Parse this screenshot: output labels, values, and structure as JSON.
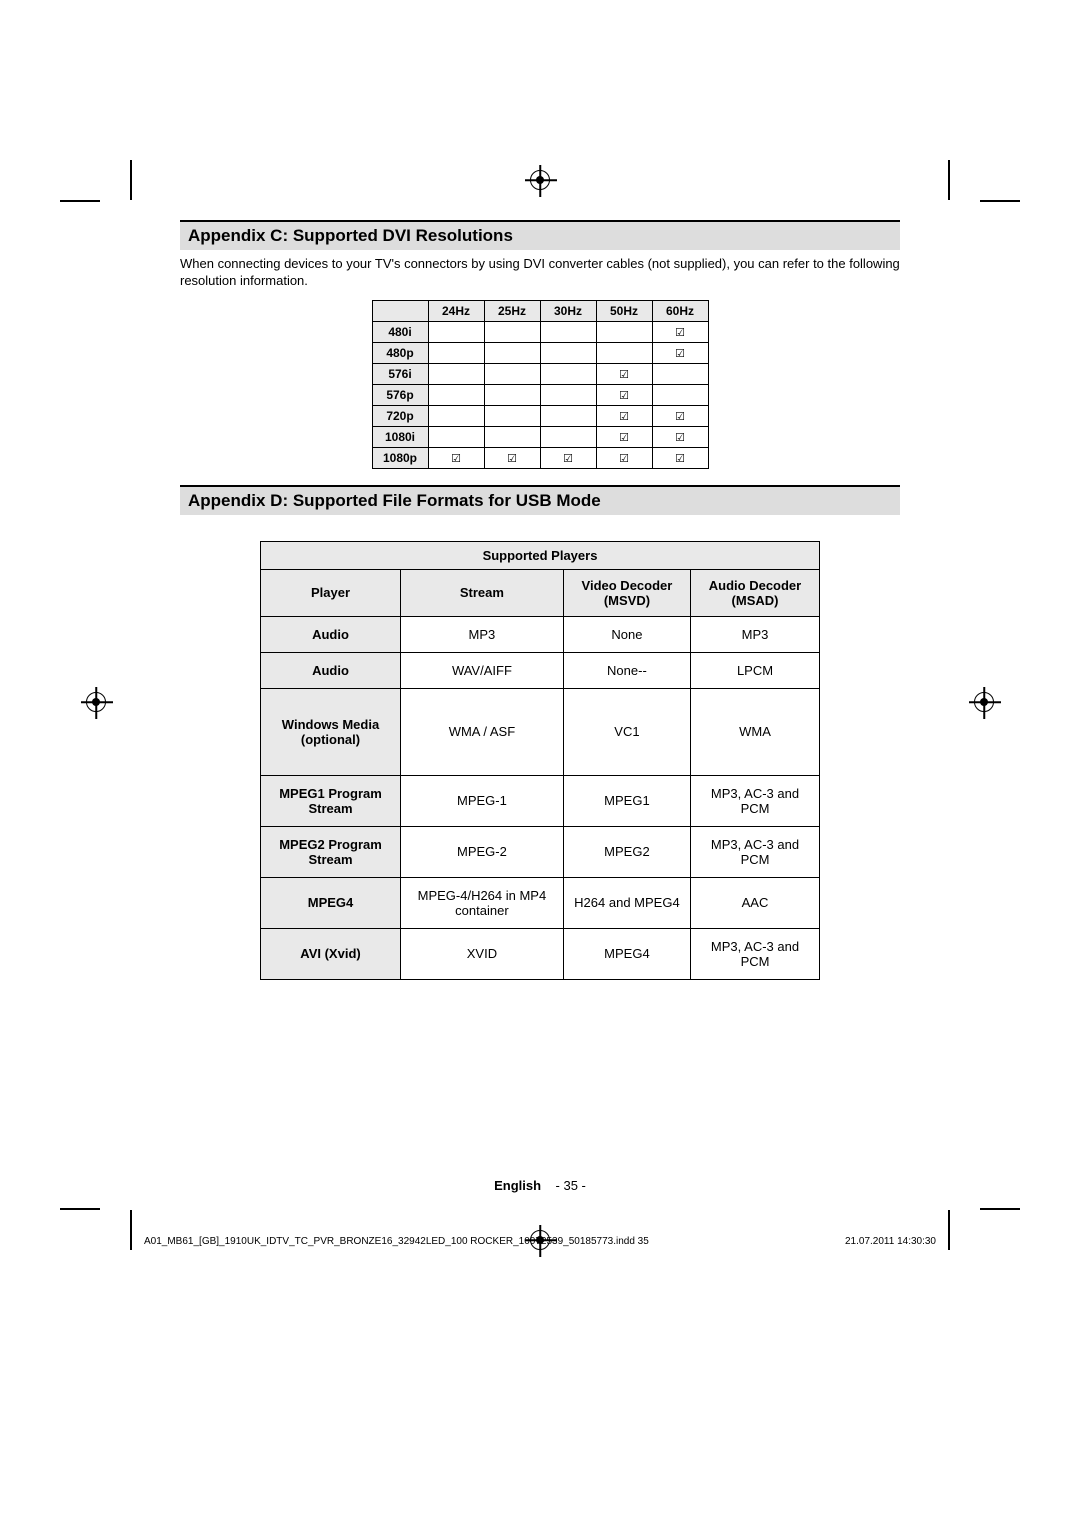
{
  "appendixC": {
    "title": "Appendix C: Supported DVI Resolutions",
    "desc": "When connecting devices to your TV's connectors by using DVI converter cables (not supplied), you can refer to the following resolution information.",
    "cols": [
      "24Hz",
      "25Hz",
      "30Hz",
      "50Hz",
      "60Hz"
    ],
    "rows": [
      {
        "label": "480i",
        "cells": [
          "",
          "",
          "",
          "",
          "☑"
        ]
      },
      {
        "label": "480p",
        "cells": [
          "",
          "",
          "",
          "",
          "☑"
        ]
      },
      {
        "label": "576i",
        "cells": [
          "",
          "",
          "",
          "☑",
          ""
        ]
      },
      {
        "label": "576p",
        "cells": [
          "",
          "",
          "",
          "☑",
          ""
        ]
      },
      {
        "label": "720p",
        "cells": [
          "",
          "",
          "",
          "☑",
          "☑"
        ]
      },
      {
        "label": "1080i",
        "cells": [
          "",
          "",
          "",
          "☑",
          "☑"
        ]
      },
      {
        "label": "1080p",
        "cells": [
          "☑",
          "☑",
          "☑",
          "☑",
          "☑"
        ]
      }
    ]
  },
  "appendixD": {
    "title": "Appendix D: Supported File Formats for USB Mode",
    "table_title": "Supported Players",
    "headers": [
      "Player",
      "Stream",
      "Video Decoder (MSVD)",
      "Audio Decoder (MSAD)"
    ],
    "rows": [
      {
        "player": "Audio",
        "stream": "MP3",
        "video": "None",
        "audio": "MP3"
      },
      {
        "player": "Audio",
        "stream": "WAV/AIFF",
        "video": "None--",
        "audio": "LPCM"
      },
      {
        "player": "Windows Media (optional)",
        "stream": "WMA / ASF",
        "video": "VC1",
        "audio": "WMA",
        "tall": true
      },
      {
        "player": "MPEG1 Program Stream",
        "stream": "MPEG-1",
        "video": "MPEG1",
        "audio": "MP3, AC-3 and PCM"
      },
      {
        "player": "MPEG2 Program Stream",
        "stream": "MPEG-2",
        "video": "MPEG2",
        "audio": "MP3, AC-3 and PCM"
      },
      {
        "player": "MPEG4",
        "stream": "MPEG-4/H264 in MP4 container",
        "video": "H264 and MPEG4",
        "audio": "AAC"
      },
      {
        "player": "AVI (Xvid)",
        "stream": "XVID",
        "video": "MPEG4",
        "audio": "MP3, AC-3 and PCM"
      }
    ]
  },
  "footer": {
    "lang": "English",
    "page": "- 35 -",
    "slug_left": "A01_MB61_[GB]_1910UK_IDTV_TC_PVR_BRONZE16_32942LED_100       ROCKER_10072539_50185773.indd   35",
    "slug_right": "21.07.2011   14:30:30"
  }
}
